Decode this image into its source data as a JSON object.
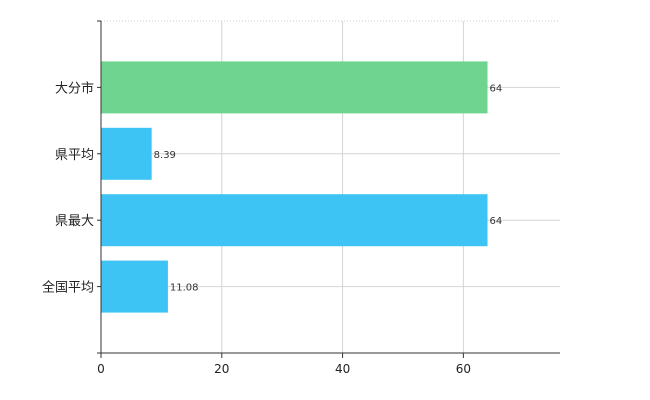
{
  "chart_data": {
    "type": "bar",
    "orientation": "horizontal",
    "title": "",
    "xlabel": "",
    "ylabel": "",
    "categories": [
      "大分市",
      "県平均",
      "県最大",
      "全国平均"
    ],
    "values": [
      64,
      8.39,
      64,
      11.08
    ],
    "data_labels": [
      "64",
      "8.39",
      "64",
      "11.08"
    ],
    "bar_colors": [
      "#6fd48f",
      "#3dc4f4",
      "#3dc4f4",
      "#3dc4f4"
    ],
    "xlim": [
      0,
      76
    ],
    "xticks": [
      0,
      20,
      40,
      60
    ],
    "xtick_labels": [
      "0",
      "20",
      "40",
      "60"
    ],
    "grid": true,
    "legend": "none"
  }
}
